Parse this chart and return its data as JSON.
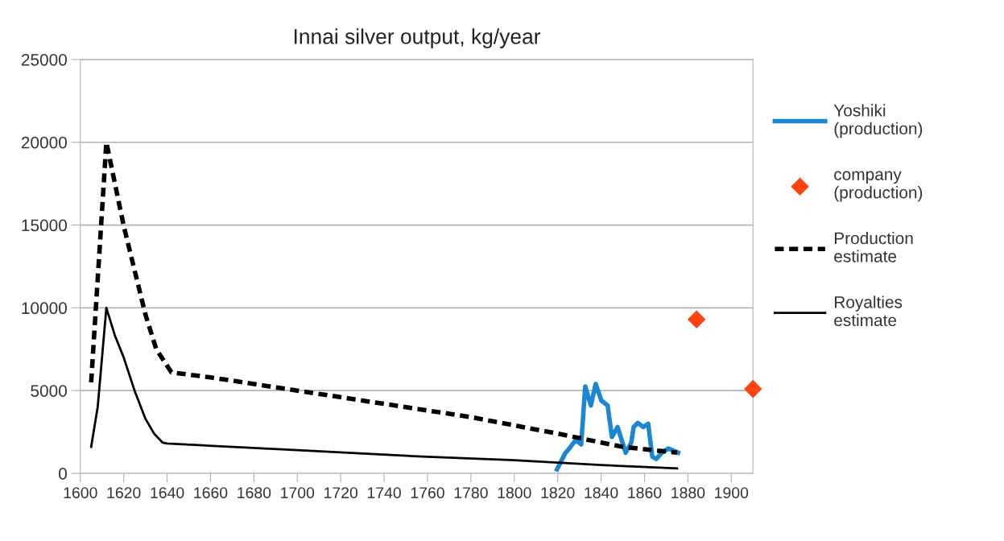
{
  "chart_data": {
    "type": "line",
    "title": "Innai silver output, kg/year",
    "xlim": [
      1600,
      1910
    ],
    "xticks": [
      1600,
      1620,
      1640,
      1660,
      1680,
      1700,
      1720,
      1740,
      1760,
      1780,
      1800,
      1820,
      1840,
      1860,
      1880,
      1900
    ],
    "ylim": [
      0,
      25000
    ],
    "yticks": [
      0,
      5000,
      10000,
      15000,
      20000,
      25000
    ],
    "grid": "y",
    "legend": "right",
    "series": [
      {
        "name": "Yoshiki\n(production)",
        "color": "#1b87d2",
        "line_style": "solid",
        "x": [
          1819.7,
          1823.4,
          1825.3,
          1828.2,
          1830.8,
          1832.7,
          1835.3,
          1837.5,
          1840.1,
          1843,
          1845,
          1847.6,
          1851.3,
          1853.9,
          1855,
          1856.9,
          1859.5,
          1861.7,
          1863.6,
          1865.4,
          1868,
          1871,
          1875.5
        ],
        "values": [
          240,
          1200,
          1500,
          2000,
          1750,
          5250,
          4100,
          5400,
          4400,
          4100,
          2200,
          2800,
          1250,
          1850,
          2800,
          3050,
          2800,
          3000,
          1000,
          870,
          1250,
          1500,
          1250
        ]
      },
      {
        "name": "company\n(production)",
        "type": "scatter",
        "marker": "diamond",
        "color": "#ff4411",
        "x": [
          1884,
          1910
        ],
        "values": [
          9300,
          5100
        ]
      },
      {
        "name": "Production\nestimate",
        "color": "#000000",
        "line_style": "dashed",
        "x": [
          1605,
          1612,
          1620,
          1630,
          1635,
          1642,
          1660,
          1700,
          1740,
          1780,
          1820,
          1850,
          1875
        ],
        "values": [
          5500,
          20000,
          14950,
          9600,
          7500,
          6100,
          5800,
          5000,
          4200,
          3400,
          2400,
          1600,
          1250
        ]
      },
      {
        "name": "Royalties\nestimate",
        "color": "#000000",
        "line_style": "solid",
        "x": [
          1605,
          1608,
          1610,
          1612,
          1616,
          1620,
          1625,
          1630,
          1634,
          1638,
          1640,
          1700,
          1760,
          1800,
          1840,
          1875
        ],
        "values": [
          1600,
          4000,
          7000,
          10000,
          8300,
          7000,
          5000,
          3300,
          2400,
          1850,
          1800,
          1400,
          1000,
          800,
          500,
          300
        ]
      }
    ]
  }
}
